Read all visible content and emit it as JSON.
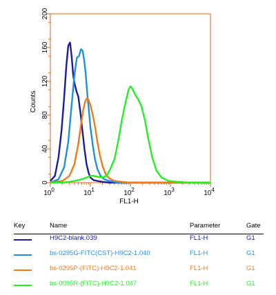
{
  "chart_data": {
    "type": "line",
    "xlabel": "FL1-H",
    "ylabel": "Counts",
    "xscale": "log",
    "xlim": [
      1,
      10000
    ],
    "ylim": [
      0,
      200
    ],
    "x_ticks": [
      {
        "value": 1,
        "base": "10",
        "exp": "0"
      },
      {
        "value": 10,
        "base": "10",
        "exp": "1"
      },
      {
        "value": 100,
        "base": "10",
        "exp": "2"
      },
      {
        "value": 1000,
        "base": "10",
        "exp": "3"
      },
      {
        "value": 10000,
        "base": "10",
        "exp": "4"
      }
    ],
    "y_ticks": [
      "0",
      "40",
      "80",
      "120",
      "160",
      "200"
    ],
    "series": [
      {
        "name": "H9C2-blank.039",
        "color": "#1a1aa0",
        "x": [
          1,
          1.3,
          1.6,
          1.9,
          2.2,
          2.5,
          2.8,
          3.1,
          3.4,
          3.7,
          4.0,
          4.5,
          5.0,
          5.6,
          6.3,
          7.1,
          8.0,
          9.0,
          10,
          12,
          15,
          20,
          30,
          50,
          100,
          1000,
          10000
        ],
        "y": [
          2,
          8,
          30,
          62,
          100,
          138,
          162,
          166,
          150,
          128,
          118,
          108,
          102,
          84,
          62,
          40,
          22,
          12,
          6,
          3,
          2,
          1,
          0,
          0,
          0,
          0,
          0
        ]
      },
      {
        "name": "bs-0295G-FITC(CST)-H9C2-1.040",
        "color": "#1f8fe0",
        "x": [
          1,
          1.6,
          2.2,
          2.8,
          3.4,
          4.0,
          4.6,
          5.2,
          5.8,
          6.4,
          7.0,
          7.6,
          8.2,
          9.0,
          10,
          11.5,
          13,
          15,
          18,
          22,
          30,
          50,
          100,
          1000,
          10000
        ],
        "y": [
          0,
          4,
          18,
          48,
          92,
          128,
          148,
          150,
          158,
          156,
          145,
          130,
          110,
          90,
          66,
          44,
          28,
          16,
          8,
          4,
          2,
          0,
          0,
          0,
          0
        ]
      },
      {
        "name": "bs-0295P-(FITC)-H9C2-1.041",
        "color": "#ef7a1a",
        "x": [
          1,
          2,
          3,
          4,
          5,
          5.8,
          6.6,
          7.4,
          8.2,
          9.0,
          10,
          11,
          12.2,
          13.5,
          15,
          17,
          20,
          24,
          30,
          40,
          60,
          100,
          1000,
          10000
        ],
        "y": [
          0,
          2,
          8,
          22,
          46,
          68,
          86,
          96,
          100,
          98,
          92,
          84,
          74,
          62,
          48,
          34,
          20,
          10,
          5,
          2,
          1,
          0,
          0,
          0
        ]
      },
      {
        "name": "bs-0095R-(FITC)-H9C2-1.047",
        "color": "#22ee22",
        "x": [
          1,
          2,
          3,
          4,
          5,
          6,
          7,
          8,
          9,
          10,
          12,
          15,
          20,
          25,
          30,
          40,
          50,
          60,
          70,
          80,
          90,
          100,
          110,
          120,
          140,
          160,
          190,
          230,
          280,
          350,
          450,
          600,
          900,
          1500,
          3000,
          10000
        ],
        "y": [
          0,
          0,
          1,
          2,
          3,
          4,
          5,
          6,
          7,
          8,
          8,
          7,
          6,
          8,
          14,
          28,
          50,
          72,
          88,
          100,
          110,
          114,
          112,
          108,
          102,
          98,
          90,
          74,
          52,
          30,
          14,
          6,
          2,
          1,
          0,
          0
        ]
      }
    ]
  },
  "key": {
    "headers": {
      "key": "Key",
      "name": "Name",
      "parameter": "Parameter",
      "gate": "Gate"
    },
    "rows": [
      {
        "color": "#1a1aa0",
        "name": "H9C2-blank.039",
        "parameter": "FL1-H",
        "gate": "G1"
      },
      {
        "color": "#1f8fe0",
        "name": "bs-0295G-FITC(CST)-H9C2-1.040",
        "parameter": "FL1-H",
        "gate": "G1"
      },
      {
        "color": "#ef7a1a",
        "name": "bs-0295P-(FITC)-H9C2-1.041",
        "parameter": "FL1-H",
        "gate": "G1"
      },
      {
        "color": "#22ee22",
        "name": "bs-0095R-(FITC)-H9C2-1.047",
        "parameter": "FL1-H",
        "gate": "G1"
      }
    ]
  }
}
